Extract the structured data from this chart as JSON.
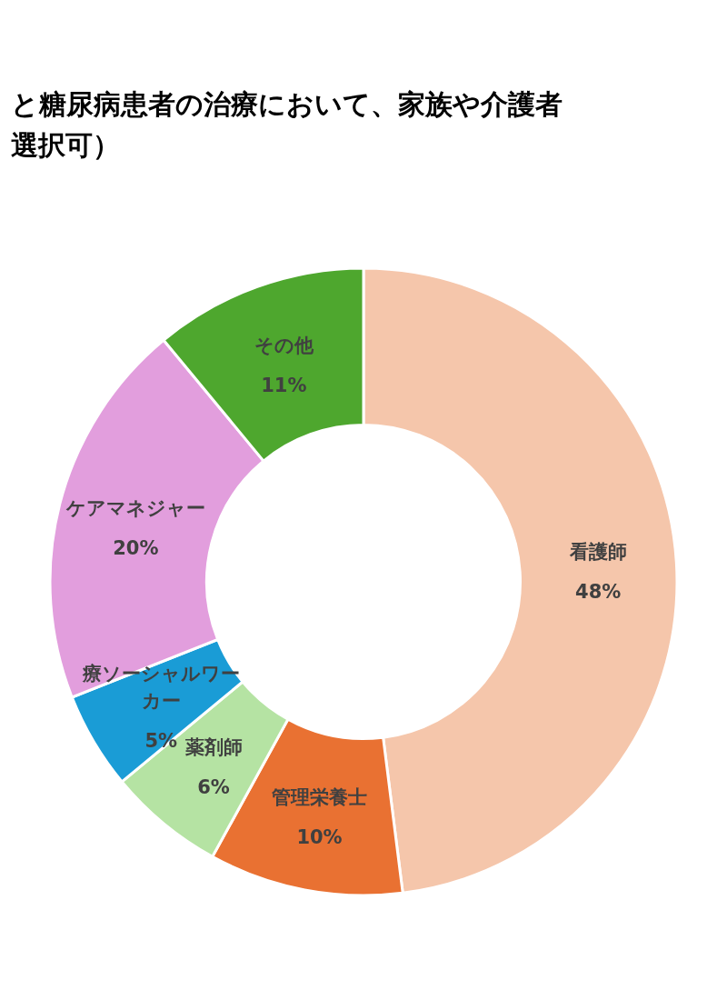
{
  "chart_data": {
    "type": "donut",
    "title": "と糖尿病患者の治療において、家族や介護者",
    "subtitle": "選択可）",
    "categories": [
      "看護師",
      "管理栄養士",
      "薬剤師",
      "療ソーシャルワーカー",
      "ケアマネジャー",
      "その他"
    ],
    "values": [
      48,
      10,
      6,
      5,
      20,
      11
    ],
    "colors": [
      "#f5c6ab",
      "#e97132",
      "#b5e3a3",
      "#1a9cd6",
      "#e29edd",
      "#4ea72e"
    ],
    "value_labels": [
      "48%",
      "10%",
      "6%",
      "5%",
      "20%",
      "11%"
    ],
    "legend": false
  }
}
